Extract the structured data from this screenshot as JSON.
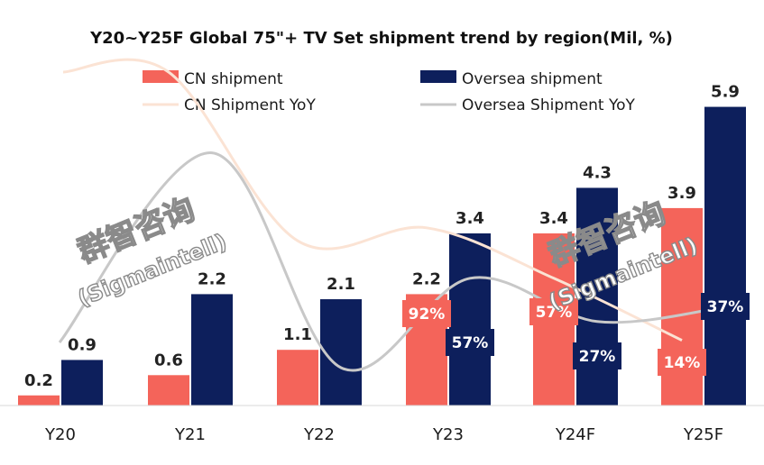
{
  "chart_data": {
    "type": "bar",
    "title": "Y20~Y25F Global 75\"+ TV Set shipment trend by region(Mil, %)",
    "categories": [
      "Y20",
      "Y21",
      "Y22",
      "Y23",
      "Y24F",
      "Y25F"
    ],
    "series": [
      {
        "name": "CN shipment",
        "kind": "bar",
        "color": "#f4645a",
        "values": [
          0.2,
          0.6,
          1.1,
          2.2,
          3.4,
          3.9
        ],
        "labels": [
          "0.2",
          "0.6",
          "1.1",
          "2.2",
          "3.4",
          "3.9"
        ]
      },
      {
        "name": "Oversea shipment",
        "kind": "bar",
        "color": "#0d1f5c",
        "values": [
          0.9,
          2.2,
          2.1,
          3.4,
          4.3,
          5.9
        ],
        "labels": [
          "0.9",
          "2.2",
          "2.1",
          "3.4",
          "4.3",
          "5.9"
        ]
      },
      {
        "name": "CN Shipment YoY",
        "kind": "line",
        "color": "#fbe3d4",
        "values": [
          null,
          200,
          83,
          92,
          57,
          14
        ],
        "labels": [
          null,
          null,
          null,
          "92%",
          "57%",
          "14%"
        ]
      },
      {
        "name": "Oversea Shipment YoY",
        "kind": "line",
        "color": "#c8c8c8",
        "values": [
          null,
          144,
          -5,
          57,
          27,
          37
        ],
        "labels": [
          null,
          null,
          null,
          "57%",
          "27%",
          "37%"
        ]
      }
    ],
    "ylim": [
      0,
      6.8
    ],
    "xlabel": "",
    "ylabel": "",
    "legend": "top",
    "grid": false
  },
  "watermarks": [
    {
      "cn": "群智咨询",
      "en": "(Sigmaintell)"
    },
    {
      "cn": "群智咨询",
      "en": "(Sigmaintell)"
    }
  ]
}
